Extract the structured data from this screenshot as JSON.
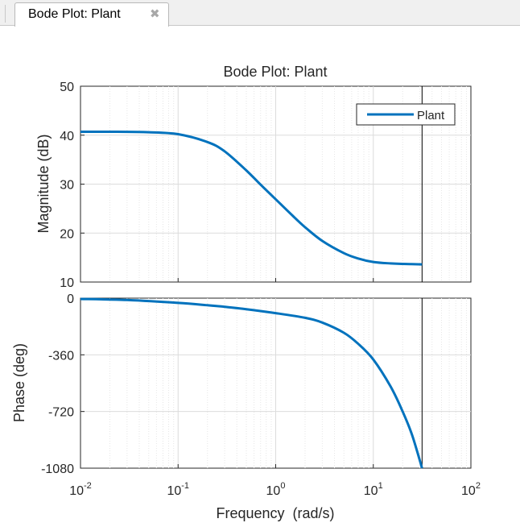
{
  "tab": {
    "label": "Bode Plot: Plant",
    "close_icon": "close-icon"
  },
  "chart_data": {
    "type": "line",
    "title": "Bode Plot: Plant",
    "xlabel": "Frequency  (rad/s)",
    "xscale": "log",
    "xlim": [
      0.01,
      100
    ],
    "x_ticks": [
      {
        "value": 0.01,
        "base": "10",
        "exp": "-2"
      },
      {
        "value": 0.1,
        "base": "10",
        "exp": "-1"
      },
      {
        "value": 1,
        "base": "10",
        "exp": "0"
      },
      {
        "value": 10,
        "base": "10",
        "exp": "1"
      },
      {
        "value": 100,
        "base": "10",
        "exp": "2"
      }
    ],
    "grid": true,
    "cursor_x": 31.6,
    "legend": {
      "position": "top-right",
      "entries": [
        "Plant"
      ]
    },
    "series_color": "#0072bd",
    "magnitude": {
      "ylabel": "Magnitude (dB)",
      "ylim": [
        10,
        50
      ],
      "yticks": [
        "10",
        "20",
        "30",
        "40",
        "50"
      ],
      "series": [
        {
          "name": "Plant",
          "x": [
            0.01,
            0.02,
            0.05,
            0.1,
            0.2,
            0.3,
            0.5,
            0.7,
            1,
            1.5,
            2,
            3,
            5,
            7,
            10,
            15,
            20,
            31.6
          ],
          "values": [
            40.7,
            40.7,
            40.6,
            40.2,
            38.6,
            36.7,
            32.8,
            29.9,
            26.9,
            23.5,
            21.2,
            18.4,
            15.9,
            14.8,
            14.1,
            13.8,
            13.7,
            13.6
          ]
        }
      ]
    },
    "phase": {
      "ylabel": "Phase (deg)",
      "ylim": [
        -1080,
        0
      ],
      "yticks": [
        "0",
        "-360",
        "-720",
        "-1080"
      ],
      "series": [
        {
          "name": "Plant",
          "x": [
            0.01,
            0.03,
            0.1,
            0.2,
            0.3,
            0.5,
            1,
            2,
            3,
            5,
            7,
            10,
            15,
            20,
            25,
            31.6
          ],
          "values": [
            -5,
            -12,
            -30,
            -45,
            -55,
            -70,
            -95,
            -125,
            -155,
            -220,
            -290,
            -390,
            -560,
            -720,
            -870,
            -1080
          ]
        }
      ]
    }
  }
}
